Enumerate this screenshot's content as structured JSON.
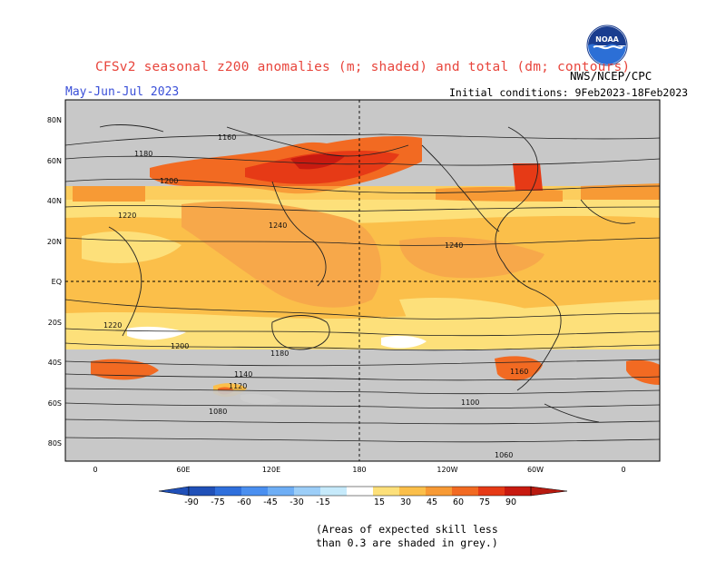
{
  "header": {
    "title": "CFSv2 seasonal z200 anomalies (m; shaded) and total (dm; contours)",
    "season": "May-Jun-Jul 2023",
    "initial_conditions": "Initial conditions: 9Feb2023-18Feb2023",
    "agency": "NWS/NCEP/CPC",
    "logo_text": "NOAA"
  },
  "map": {
    "lat_labels": [
      "80N",
      "60N",
      "40N",
      "20N",
      "EQ",
      "20S",
      "40S",
      "60S",
      "80S"
    ],
    "lon_labels": [
      "0",
      "60E",
      "120E",
      "180",
      "120W",
      "60W",
      "0"
    ],
    "contour_labels": [
      "1160",
      "1180",
      "1200",
      "1220",
      "1240",
      "1240",
      "1220",
      "1200",
      "1180",
      "1160",
      "1140",
      "1120",
      "1100",
      "1080",
      "1060"
    ]
  },
  "legend": {
    "values": [
      "-90",
      "-75",
      "-60",
      "-45",
      "-30",
      "-15",
      "15",
      "30",
      "45",
      "60",
      "75",
      "90"
    ],
    "colors": {
      "neg": [
        "#2050b8",
        "#2f6fdc",
        "#4a8ff0",
        "#6eaef5",
        "#9ccef8",
        "#c6eafb"
      ],
      "white": "#ffffff",
      "pos": [
        "#fde07a",
        "#fbbf4a",
        "#f79a35",
        "#f26a22",
        "#e63a16",
        "#c81a10"
      ]
    }
  },
  "footnote": {
    "line1": "(Areas of expected skill less",
    "line2": "than 0.3 are shaded in grey.)"
  }
}
